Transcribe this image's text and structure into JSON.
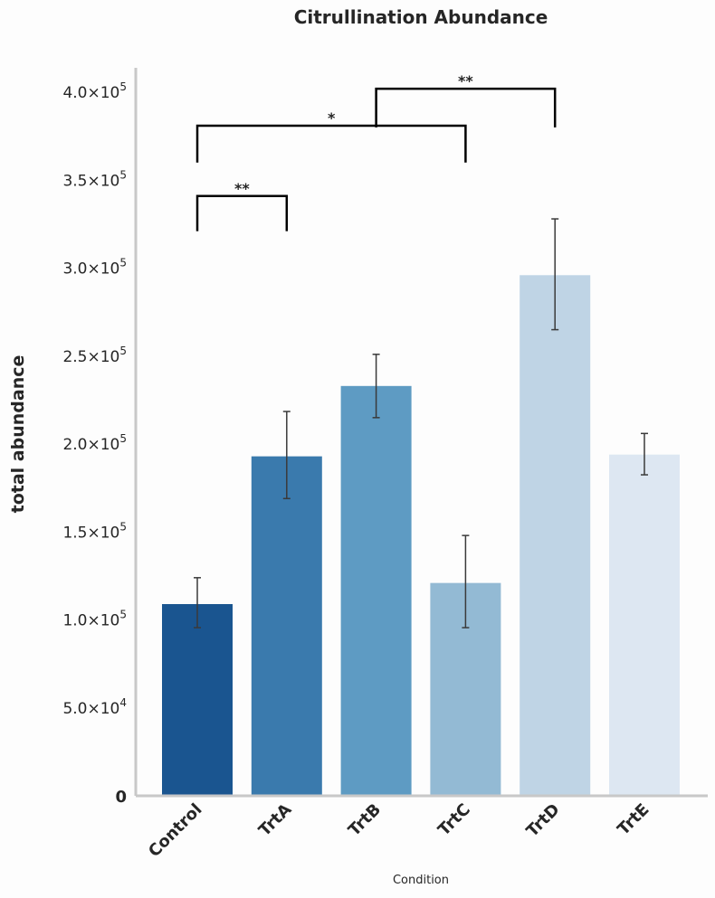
{
  "chart_data": {
    "type": "bar",
    "title": "Citrullination Abundance",
    "xlabel": "Condition",
    "ylabel": "total abundance",
    "ylim": [
      0,
      415000
    ],
    "grid": false,
    "categories": [
      "Control",
      "TrtA",
      "TrtB",
      "TrtC",
      "TrtD",
      "TrtE"
    ],
    "values": [
      109000,
      193000,
      233000,
      121000,
      296000,
      194000
    ],
    "error_low": [
      95600,
      169000,
      215000,
      95600,
      265000,
      182500
    ],
    "error_high": [
      124000,
      218500,
      251000,
      148000,
      328000,
      206000
    ],
    "colors": [
      "#1a5590",
      "#3a7aad",
      "#5e9bc3",
      "#93bad4",
      "#bfd4e5",
      "#dde7f2"
    ],
    "yticks": [
      {
        "value": 0,
        "label": "0"
      },
      {
        "value": 50000,
        "mant": "5.0",
        "exp": "4"
      },
      {
        "value": 100000,
        "mant": "1.0",
        "exp": "5"
      },
      {
        "value": 150000,
        "mant": "1.5",
        "exp": "5"
      },
      {
        "value": 200000,
        "mant": "2.0",
        "exp": "5"
      },
      {
        "value": 250000,
        "mant": "2.5",
        "exp": "5"
      },
      {
        "value": 300000,
        "mant": "3.0",
        "exp": "5"
      },
      {
        "value": 350000,
        "mant": "3.5",
        "exp": "5"
      },
      {
        "value": 400000,
        "mant": "4.0",
        "exp": "5"
      }
    ],
    "annotations": [
      {
        "from": "Control",
        "to": "TrtA",
        "y": 341000,
        "leg_bottom": 321000,
        "label": "**"
      },
      {
        "from": "Control",
        "to": "TrtC",
        "y": 381000,
        "leg_bottom": 360000,
        "label": "*"
      },
      {
        "from": "TrtB",
        "to": "TrtD",
        "y": 402000,
        "leg_bottom": 380000,
        "label": "**"
      }
    ]
  }
}
